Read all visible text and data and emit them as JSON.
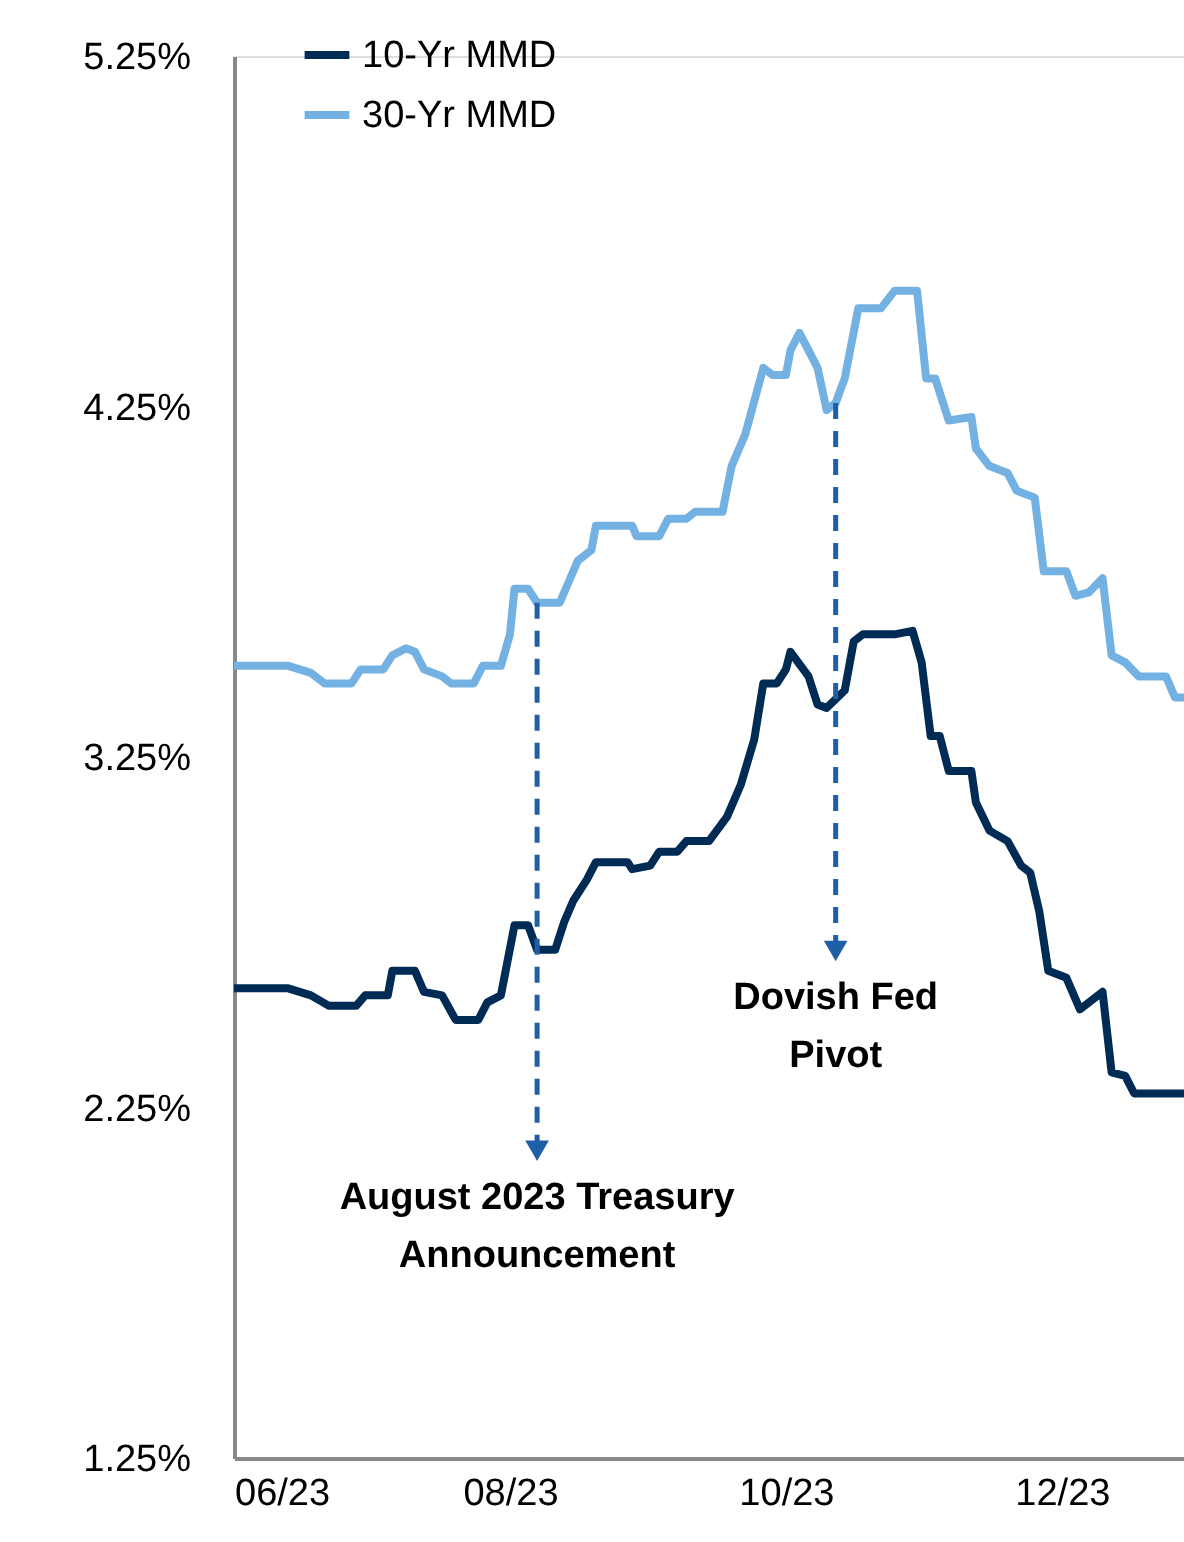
{
  "chart_data": {
    "type": "line",
    "xlim": [
      "2023-06-01",
      "2023-12-28"
    ],
    "xticks": [
      {
        "value": "2023-06-01",
        "label": "06/23"
      },
      {
        "value": "2023-08-01",
        "label": "08/23"
      },
      {
        "value": "2023-10-01",
        "label": "10/23"
      },
      {
        "value": "2023-12-01",
        "label": "12/23"
      }
    ],
    "ylim": [
      1.25,
      5.25
    ],
    "yticks": [
      {
        "value": 1.25,
        "label": "1.25%"
      },
      {
        "value": 2.25,
        "label": "2.25%"
      },
      {
        "value": 3.25,
        "label": "3.25%"
      },
      {
        "value": 4.25,
        "label": "4.25%"
      },
      {
        "value": 5.25,
        "label": "5.25%"
      }
    ],
    "grid": false,
    "legend": "top left",
    "marker": "none",
    "line_style": "solid",
    "series": [
      {
        "name": "10-Yr MMD",
        "color": "#002b55",
        "x": [
          "2023-06-01",
          "2023-06-13",
          "2023-06-18",
          "2023-06-22",
          "2023-06-28",
          "2023-06-30",
          "2023-07-05",
          "2023-07-06",
          "2023-07-11",
          "2023-07-13",
          "2023-07-17",
          "2023-07-20",
          "2023-07-25",
          "2023-07-27",
          "2023-07-30",
          "2023-08-02",
          "2023-08-05",
          "2023-08-07",
          "2023-08-11",
          "2023-08-13",
          "2023-08-15",
          "2023-08-18",
          "2023-08-20",
          "2023-08-27",
          "2023-08-28",
          "2023-09-01",
          "2023-09-03",
          "2023-09-07",
          "2023-09-09",
          "2023-09-14",
          "2023-09-18",
          "2023-09-21",
          "2023-09-24",
          "2023-09-26",
          "2023-09-29",
          "2023-10-01",
          "2023-10-02",
          "2023-10-06",
          "2023-10-08",
          "2023-10-10",
          "2023-10-14",
          "2023-10-16",
          "2023-10-18",
          "2023-10-25",
          "2023-10-29",
          "2023-10-31",
          "2023-11-02",
          "2023-11-04",
          "2023-11-06",
          "2023-11-11",
          "2023-11-12",
          "2023-11-15",
          "2023-11-19",
          "2023-11-22",
          "2023-11-24",
          "2023-11-26",
          "2023-11-28",
          "2023-12-02",
          "2023-12-05",
          "2023-12-07",
          "2023-12-10",
          "2023-12-12",
          "2023-12-15",
          "2023-12-17",
          "2023-12-28"
        ],
        "values": [
          2.59,
          2.59,
          2.57,
          2.54,
          2.54,
          2.57,
          2.57,
          2.64,
          2.64,
          2.58,
          2.57,
          2.5,
          2.5,
          2.55,
          2.57,
          2.77,
          2.77,
          2.7,
          2.7,
          2.78,
          2.84,
          2.9,
          2.95,
          2.95,
          2.93,
          2.94,
          2.98,
          2.98,
          3.01,
          3.01,
          3.08,
          3.17,
          3.3,
          3.46,
          3.46,
          3.5,
          3.55,
          3.48,
          3.4,
          3.39,
          3.44,
          3.58,
          3.6,
          3.6,
          3.61,
          3.52,
          3.31,
          3.31,
          3.21,
          3.21,
          3.12,
          3.04,
          3.01,
          2.94,
          2.92,
          2.81,
          2.64,
          2.62,
          2.53,
          2.55,
          2.58,
          2.35,
          2.34,
          2.29,
          2.29
        ]
      },
      {
        "name": "30-Yr MMD",
        "color": "#74b1e3",
        "x": [
          "2023-06-01",
          "2023-06-13",
          "2023-06-18",
          "2023-06-21",
          "2023-06-27",
          "2023-06-29",
          "2023-07-04",
          "2023-07-06",
          "2023-07-09",
          "2023-07-11",
          "2023-07-13",
          "2023-07-17",
          "2023-07-19",
          "2023-07-24",
          "2023-07-26",
          "2023-07-30",
          "2023-08-01",
          "2023-08-02",
          "2023-08-05",
          "2023-08-07",
          "2023-08-12",
          "2023-08-14",
          "2023-08-16",
          "2023-08-19",
          "2023-08-20",
          "2023-08-28",
          "2023-08-29",
          "2023-09-03",
          "2023-09-05",
          "2023-09-09",
          "2023-09-11",
          "2023-09-17",
          "2023-09-19",
          "2023-09-22",
          "2023-09-26",
          "2023-09-28",
          "2023-10-01",
          "2023-10-02",
          "2023-10-04",
          "2023-10-08",
          "2023-10-10",
          "2023-10-12",
          "2023-10-14",
          "2023-10-17",
          "2023-10-22",
          "2023-10-25",
          "2023-10-30",
          "2023-11-01",
          "2023-11-03",
          "2023-11-06",
          "2023-11-11",
          "2023-11-12",
          "2023-11-15",
          "2023-11-19",
          "2023-11-21",
          "2023-11-25",
          "2023-11-27",
          "2023-12-02",
          "2023-12-04",
          "2023-12-07",
          "2023-12-10",
          "2023-12-12",
          "2023-12-15",
          "2023-12-18",
          "2023-12-24",
          "2023-12-26",
          "2023-12-28"
        ],
        "values": [
          3.51,
          3.51,
          3.49,
          3.46,
          3.46,
          3.5,
          3.5,
          3.54,
          3.56,
          3.55,
          3.5,
          3.48,
          3.46,
          3.46,
          3.51,
          3.51,
          3.6,
          3.73,
          3.73,
          3.69,
          3.69,
          3.75,
          3.81,
          3.84,
          3.91,
          3.91,
          3.88,
          3.88,
          3.93,
          3.93,
          3.95,
          3.95,
          4.08,
          4.17,
          4.36,
          4.34,
          4.34,
          4.41,
          4.46,
          4.36,
          4.24,
          4.26,
          4.33,
          4.53,
          4.53,
          4.58,
          4.58,
          4.33,
          4.33,
          4.21,
          4.22,
          4.13,
          4.08,
          4.06,
          4.01,
          3.99,
          3.78,
          3.78,
          3.71,
          3.72,
          3.76,
          3.54,
          3.52,
          3.48,
          3.48,
          3.42,
          3.42
        ]
      }
    ],
    "annotations": [
      {
        "text": "August 2023 Treasury Announcement",
        "x": "2023-08-07",
        "y": 3.69
      },
      {
        "text": "Dovish Fed Pivot",
        "x": "2023-10-12",
        "y": 4.26
      }
    ]
  }
}
